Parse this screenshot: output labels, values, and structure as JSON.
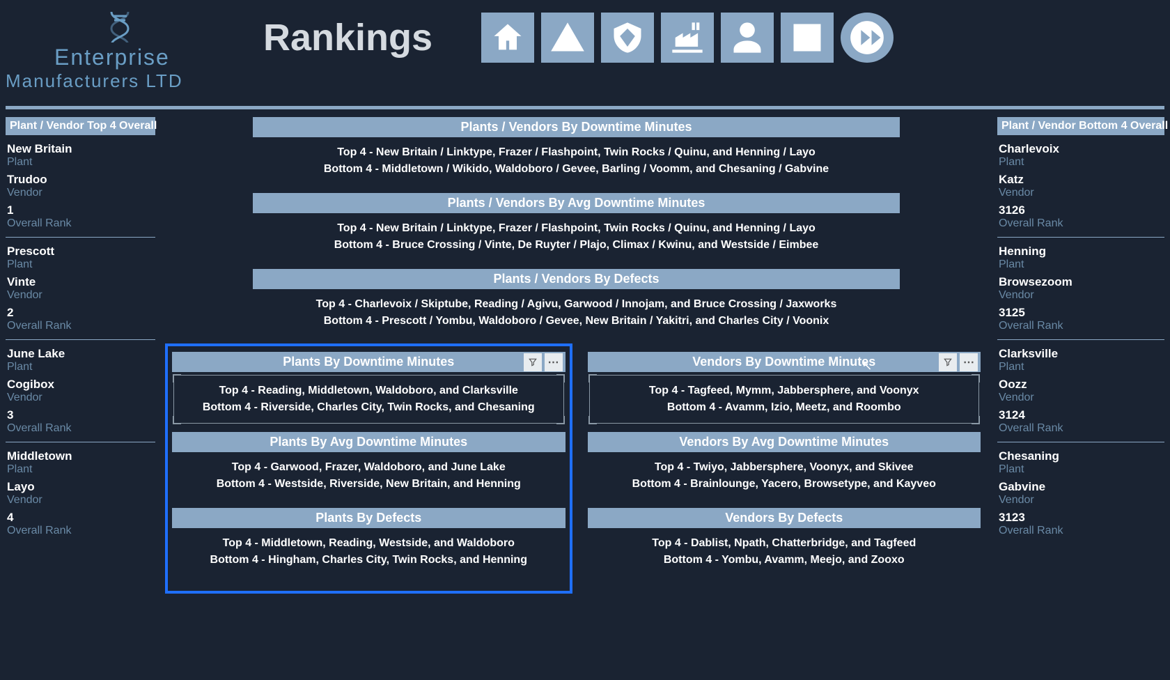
{
  "brand": {
    "line1": "Enterprise",
    "line2": "Manufacturers LTD"
  },
  "page_title": "Rankings",
  "nav": [
    "home",
    "alert",
    "shield",
    "factory",
    "person",
    "list",
    "forward"
  ],
  "left_header": "Plant / Vendor Top 4 Overall",
  "right_header": "Plant / Vendor Bottom 4 Overall",
  "labels": {
    "plant": "Plant",
    "vendor": "Vendor",
    "overall_rank": "Overall Rank"
  },
  "top4": [
    {
      "plant": "New Britain",
      "vendor": "Trudoo",
      "rank": "1"
    },
    {
      "plant": "Prescott",
      "vendor": "Vinte",
      "rank": "2"
    },
    {
      "plant": "June Lake",
      "vendor": "Cogibox",
      "rank": "3"
    },
    {
      "plant": "Middletown",
      "vendor": "Layo",
      "rank": "4"
    }
  ],
  "bottom4": [
    {
      "plant": "Charlevoix",
      "vendor": "Katz",
      "rank": "3126"
    },
    {
      "plant": "Henning",
      "vendor": "Browsezoom",
      "rank": "3125"
    },
    {
      "plant": "Clarksville",
      "vendor": "Oozz",
      "rank": "3124"
    },
    {
      "plant": "Chesaning",
      "vendor": "Gabvine",
      "rank": "3123"
    }
  ],
  "center_sections": [
    {
      "title": "Plants / Vendors By Downtime Minutes",
      "top": "Top 4 - New Britain / Linktype, Frazer / Flashpoint, Twin Rocks / Quinu, and Henning / Layo",
      "bottom": "Bottom 4 - Middletown / Wikido, Waldoboro / Gevee, Barling / Voomm, and Chesaning / Gabvine"
    },
    {
      "title": "Plants / Vendors By Avg Downtime Minutes",
      "top": "Top 4 - New Britain / Linktype, Frazer / Flashpoint, Twin Rocks / Quinu, and Henning / Layo",
      "bottom": "Bottom 4 - Bruce Crossing / Vinte, De Ruyter / Plajo, Climax / Kwinu, and Westside / Eimbee"
    },
    {
      "title": "Plants / Vendors By Defects",
      "top": "Top 4 - Charlevoix / Skiptube, Reading / Agivu, Garwood / Innojam, and Bruce Crossing / Jaxworks",
      "bottom": "Bottom 4 - Prescott / Yombu, Waldoboro / Gevee, New Britain / Yakitri, and Charles City / Voonix"
    }
  ],
  "plants_panels": [
    {
      "title": "Plants By Downtime Minutes",
      "top": "Top 4 - Reading, Middletown, Waldoboro, and Clarksville",
      "bottom": "Bottom 4 - Riverside, Charles City, Twin Rocks, and Chesaning",
      "toolbar": true,
      "outlined": true
    },
    {
      "title": "Plants By Avg Downtime Minutes",
      "top": "Top 4 - Garwood, Frazer, Waldoboro, and June Lake",
      "bottom": "Bottom 4 - Westside, Riverside, New Britain, and Henning"
    },
    {
      "title": "Plants By Defects",
      "top": "Top 4 - Middletown, Reading, Westside, and Waldoboro",
      "bottom": "Bottom 4 - Hingham, Charles City, Twin Rocks, and Henning"
    }
  ],
  "vendors_panels": [
    {
      "title": "Vendors By Downtime Minutes",
      "top": "Top 4 - Tagfeed, Mymm, Jabbersphere, and Voonyx",
      "bottom": "Bottom 4 - Avamm, Izio, Meetz, and Roombo",
      "toolbar": true,
      "outlined": true
    },
    {
      "title": "Vendors By Avg Downtime Minutes",
      "top": "Top 4 - Twiyo, Jabbersphere, Voonyx, and Skivee",
      "bottom": "Bottom 4 - Brainlounge, Yacero, Browsetype, and Kayveo"
    },
    {
      "title": "Vendors By Defects",
      "top": "Top 4 - Dablist, Npath, Chatterbridge, and Tagfeed",
      "bottom": "Bottom 4 - Yombu, Avamm, Meejo, and Zooxo"
    }
  ],
  "colors": {
    "bg": "#1a2332",
    "accent": "#8ba8c5",
    "link": "#6a9ec5",
    "select": "#1f6fff"
  }
}
